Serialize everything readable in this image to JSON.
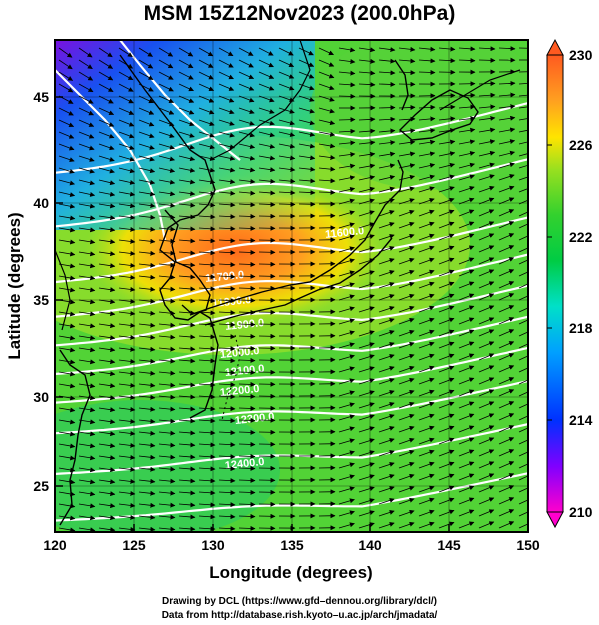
{
  "title": "MSM 15Z12Nov2023 (200.0hPa)",
  "x_axis": {
    "label": "Longitude (degrees)",
    "range": [
      120,
      150
    ],
    "ticks": [
      "120",
      "125",
      "130",
      "135",
      "140",
      "145",
      "150"
    ]
  },
  "y_axis": {
    "label": "Latitude  (degrees)",
    "range": [
      22.4,
      47.6
    ],
    "ticks": [
      "25",
      "30",
      "35",
      "40",
      "45"
    ]
  },
  "colorbar": {
    "range": [
      210,
      230
    ],
    "labels": [
      "230",
      "226",
      "222",
      "218",
      "214",
      "210"
    ],
    "colors": [
      "#ff00cc",
      "#8000ff",
      "#0030ff",
      "#00a0ff",
      "#00e0c8",
      "#00cc44",
      "#33d12e",
      "#99e01f",
      "#ffe400",
      "#ffa020",
      "#ff5a20"
    ]
  },
  "contours": {
    "color": "#ffffff",
    "labels": [
      "11600.0",
      "11700.0",
      "11800.0",
      "11900.0",
      "12000.0",
      "12100.0",
      "12200.0",
      "12300.0",
      "12400.0"
    ]
  },
  "vector_color": "#000000",
  "coast_color": "#000000",
  "credits": {
    "line1": "Drawing by DCL (https://www.gfd–dennou.org/library/dcl/)",
    "line2": "Data from http://database.rish.kyoto–u.ac.jp/arch/jmadata/"
  }
}
